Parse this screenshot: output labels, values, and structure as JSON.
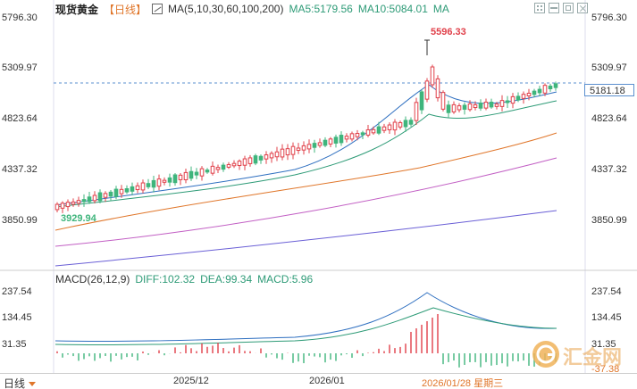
{
  "header": {
    "instrument": "现货黄金",
    "period": "【日线】",
    "ma_params": "MA(5,10,30,60,100,200)",
    "ma5": "MA5:5179.56",
    "ma10": "MA10:5084.01",
    "ma_more": "MA"
  },
  "price_axis": {
    "left": [
      "5796.30",
      "5309.97",
      "4823.64",
      "4337.32",
      "3850.99"
    ],
    "right": [
      "5796.30",
      "5309.97",
      "4823.64",
      "4337.32",
      "3850.99"
    ],
    "current_price": "5181.18"
  },
  "annotations": {
    "high": "5596.33",
    "low": "3929.94"
  },
  "macd": {
    "name": "MACD(26,12,9)",
    "diff": "DIFF:102.32",
    "dea": "DEA:99.34",
    "macd": "MACD:5.96",
    "axis": [
      "237.54",
      "134.45",
      "31.35"
    ],
    "right_axis": [
      "237.54",
      "134.45",
      "31.35"
    ],
    "min_label": "-37.38"
  },
  "footer": {
    "period_selector": "日线",
    "dates": [
      "2025/12",
      "2026/01"
    ],
    "selected_date": "2026/01/28 星期三"
  },
  "watermark": "汇金网",
  "colors": {
    "up": "#e0404a",
    "down": "#3fb57c",
    "ma5": "#2e6fc0",
    "ma10": "#2e9b77",
    "ma30": "#e0762a",
    "ma60": "#c25fc4",
    "ma100": "#6a5fd6",
    "current_line": "#5a8fcf"
  }
}
